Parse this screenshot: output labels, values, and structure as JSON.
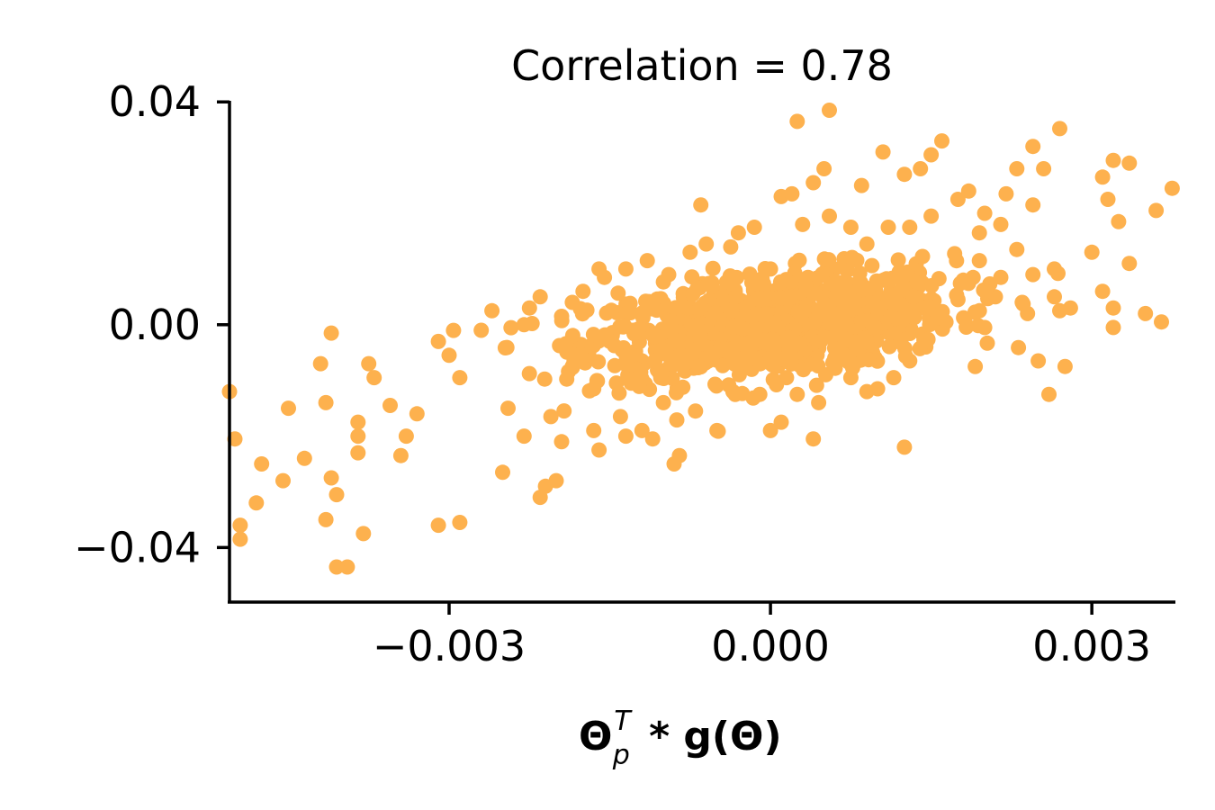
{
  "chart_data": {
    "type": "scatter",
    "title": "Correlation = 0.78",
    "xlabel": {
      "main": "Θ",
      "superscript": "T",
      "subscript": "p",
      "rest": " * g(Θ)"
    },
    "ylabel": "",
    "xlim": [
      -0.00505,
      0.00378
    ],
    "ylim": [
      -0.0498,
      0.0402
    ],
    "xticks": [
      -0.003,
      0.0,
      0.003
    ],
    "xtick_labels": [
      "−0.003",
      "0.000",
      "0.003"
    ],
    "yticks": [
      -0.04,
      0.0,
      0.04
    ],
    "ytick_labels": [
      "−0.04",
      "0.00",
      "0.04"
    ],
    "marker_color": "#FDB14E",
    "axis_color": "#000000",
    "correlation": 0.78,
    "n_points": 1100,
    "points": [
      [
        0.00025,
        0.0365
      ],
      [
        0.00055,
        0.0385
      ],
      [
        0.0027,
        0.0352
      ],
      [
        0.0031,
        0.0265
      ],
      [
        0.0032,
        0.0295
      ],
      [
        0.00335,
        0.029
      ],
      [
        0.00375,
        0.0245
      ],
      [
        0.0036,
        0.0205
      ],
      [
        0.00315,
        0.0225
      ],
      [
        0.00325,
        0.0185
      ],
      [
        0.003,
        0.013
      ],
      [
        0.0031,
        0.006
      ],
      [
        0.00335,
        0.011
      ],
      [
        0.0035,
        0.002
      ],
      [
        0.00365,
        0.0005
      ],
      [
        0.0032,
        0.003
      ],
      [
        0.0032,
        -0.0005
      ],
      [
        0.0028,
        0.003
      ],
      [
        0.0027,
        0.0025
      ],
      [
        0.0025,
        -0.0065
      ],
      [
        0.00275,
        -0.0075
      ],
      [
        0.0026,
        -0.0125
      ],
      [
        0.00245,
        0.032
      ],
      [
        0.00255,
        0.028
      ],
      [
        0.0023,
        0.028
      ],
      [
        0.0022,
        0.0235
      ],
      [
        0.0023,
        0.0135
      ],
      [
        0.00215,
        0.0085
      ],
      [
        0.0021,
        0.005
      ],
      [
        0.00235,
        0.004
      ],
      [
        0.0024,
        0.002
      ],
      [
        0.00245,
        0.0215
      ],
      [
        0.002,
        0.02
      ],
      [
        0.00185,
        0.024
      ],
      [
        0.00175,
        0.0225
      ],
      [
        0.0016,
        0.033
      ],
      [
        0.0015,
        0.0305
      ],
      [
        0.0014,
        0.028
      ],
      [
        0.00125,
        0.027
      ],
      [
        0.00105,
        0.031
      ],
      [
        0.00085,
        0.025
      ],
      [
        0.0005,
        0.028
      ],
      [
        0.0004,
        0.0255
      ],
      [
        0.0003,
        0.018
      ],
      [
        0.0009,
        0.0145
      ],
      [
        0.0018,
        0.008
      ],
      [
        0.00175,
        0.0045
      ],
      [
        0.00195,
        0.0025
      ],
      [
        0.00195,
        0.0115
      ],
      [
        0.002,
        -0.0005
      ],
      [
        0.0016,
        -0.0005
      ],
      [
        0.00145,
        -0.004
      ],
      [
        0.0013,
        -0.0065
      ],
      [
        0.00115,
        -0.0095
      ],
      [
        0.001,
        -0.0115
      ],
      [
        0.0009,
        -0.012
      ],
      [
        0.00125,
        -0.022
      ],
      [
        0.00045,
        -0.014
      ],
      [
        0.00025,
        -0.0125
      ],
      [
        0.0001,
        -0.0175
      ],
      [
        0.0004,
        -0.0205
      ],
      [
        -0.0,
        -0.019
      ],
      [
        -0.0005,
        -0.019
      ],
      [
        -0.00085,
        -0.0235
      ],
      [
        -0.0009,
        -0.025
      ],
      [
        -0.0012,
        -0.019
      ],
      [
        -0.0014,
        -0.0165
      ],
      [
        -0.0016,
        -0.0225
      ],
      [
        -0.002,
        -0.028
      ],
      [
        -0.0021,
        -0.029
      ],
      [
        -0.00215,
        -0.031
      ],
      [
        -0.0025,
        -0.0265
      ],
      [
        -0.0029,
        -0.0355
      ],
      [
        -0.0031,
        -0.036
      ],
      [
        -0.0033,
        -0.016
      ],
      [
        -0.0034,
        -0.02
      ],
      [
        -0.00345,
        -0.0235
      ],
      [
        -0.00355,
        -0.0145
      ],
      [
        -0.0037,
        -0.0095
      ],
      [
        -0.00375,
        -0.007
      ],
      [
        -0.00385,
        -0.0175
      ],
      [
        -0.00385,
        -0.02
      ],
      [
        -0.00385,
        -0.023
      ],
      [
        -0.0038,
        -0.0375
      ],
      [
        -0.00405,
        -0.0305
      ],
      [
        -0.0041,
        -0.0275
      ],
      [
        -0.00415,
        -0.035
      ],
      [
        -0.00395,
        -0.0435
      ],
      [
        -0.00405,
        -0.0435
      ],
      [
        -0.0041,
        -0.0015
      ],
      [
        -0.0042,
        -0.007
      ],
      [
        -0.00415,
        -0.014
      ],
      [
        -0.00435,
        -0.024
      ],
      [
        -0.0045,
        -0.015
      ],
      [
        -0.00455,
        -0.028
      ],
      [
        -0.00475,
        -0.025
      ],
      [
        -0.0048,
        -0.032
      ],
      [
        -0.00495,
        -0.036
      ],
      [
        -0.00495,
        -0.0385
      ],
      [
        -0.00505,
        -0.012
      ],
      [
        -0.005,
        -0.0205
      ],
      [
        -0.0031,
        -0.003
      ],
      [
        -0.003,
        -0.0055
      ],
      [
        -0.0029,
        -0.0095
      ],
      [
        -0.0027,
        -0.001
      ],
      [
        -0.0026,
        0.0025
      ],
      [
        -0.00225,
        0.003
      ],
      [
        -0.0023,
        0.0
      ],
      [
        -0.00185,
        0.004
      ],
      [
        -0.0016,
        0.01
      ],
      [
        -0.00155,
        0.0085
      ],
      [
        -0.00135,
        0.01
      ],
      [
        -0.00115,
        0.0115
      ],
      [
        -0.00095,
        0.009
      ],
      [
        -0.00075,
        0.013
      ],
      [
        -0.0006,
        0.0145
      ],
      [
        -0.00065,
        0.0215
      ],
      [
        -0.0003,
        0.0165
      ],
      [
        -0.00015,
        0.0175
      ],
      [
        0.0001,
        0.023
      ],
      [
        0.0002,
        0.0235
      ],
      [
        0.00055,
        0.0195
      ],
      [
        0.00075,
        0.0175
      ],
      [
        0.0011,
        0.0175
      ],
      [
        0.0013,
        0.0175
      ],
      [
        0.0015,
        0.0195
      ],
      [
        0.00195,
        0.0165
      ],
      [
        0.00215,
        0.018
      ],
      [
        0.00265,
        0.01
      ],
      [
        0.00265,
        0.005
      ],
      [
        0.00245,
        0.009
      ],
      [
        0.0012,
        -0.002
      ],
      [
        0.0006,
        -0.006
      ],
      [
        0.00075,
        -0.0095
      ],
      [
        0.00015,
        -0.0095
      ],
      [
        -0.0001,
        -0.0125
      ],
      [
        -0.00035,
        -0.012
      ],
      [
        -0.0007,
        -0.0155
      ],
      [
        -0.001,
        -0.014
      ],
      [
        -0.0011,
        -0.0205
      ],
      [
        -0.00135,
        -0.02
      ],
      [
        -0.00165,
        -0.019
      ],
      [
        -0.00195,
        -0.021
      ],
      [
        -0.00205,
        -0.0165
      ],
      [
        -0.0023,
        -0.02
      ],
      [
        -0.00245,
        -0.015
      ],
      [
        -0.00185,
        -0.0075
      ],
      [
        -0.00165,
        -0.0115
      ],
      [
        -0.0013,
        -0.0105
      ],
      [
        -0.00195,
        0.0015
      ],
      [
        -0.00175,
        0.006
      ],
      [
        -0.00215,
        0.005
      ],
      [
        0.0,
        0.01
      ],
      [
        0.00035,
        0.0085
      ],
      [
        0.0008,
        0.003
      ],
      [
        0.0,
        0.002
      ],
      [
        0.0,
        -0.002
      ],
      [
        0.0006,
        0.01
      ]
    ]
  }
}
